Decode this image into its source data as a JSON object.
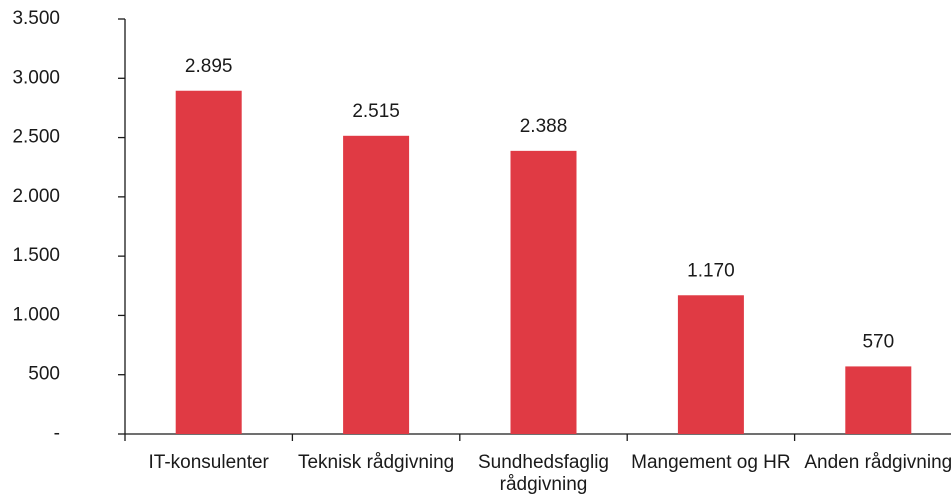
{
  "chart_data": {
    "type": "bar",
    "categories": [
      "IT-konsulenter",
      "Teknisk rådgivning",
      "Sundhedsfaglig rådgivning",
      "Mangement og HR",
      "Anden rådgivning"
    ],
    "values": [
      2895,
      2515,
      2388,
      1170,
      570
    ],
    "value_labels": [
      "2.895",
      "2.515",
      "2.388",
      "1.170",
      "570"
    ],
    "color": "#e03a44",
    "ylim": [
      0,
      3500
    ],
    "yticks": [
      {
        "value": 0,
        "label": "-"
      },
      500,
      {
        "value": 1000,
        "label": "1.000"
      },
      {
        "value": 1500,
        "label": "1.500"
      },
      {
        "value": 2000,
        "label": "2.000"
      },
      {
        "value": 2500,
        "label": "2.500"
      },
      {
        "value": 3000,
        "label": "3.000"
      },
      {
        "value": 3500,
        "label": "3.500"
      }
    ]
  }
}
